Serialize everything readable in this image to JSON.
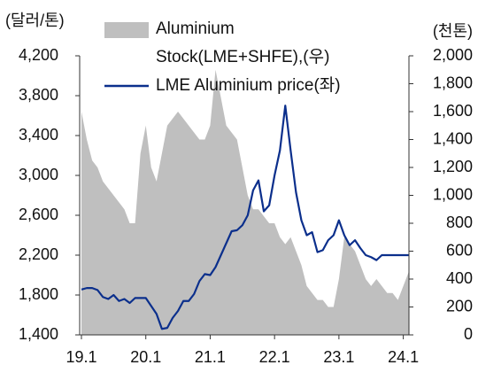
{
  "chart_data": {
    "type": "area_line",
    "y_label": "(달러/톤)",
    "y2_label": "(천톤)",
    "categories": [
      "19.1",
      null,
      null,
      null,
      null,
      null,
      null,
      null,
      null,
      null,
      null,
      null,
      "20.1",
      null,
      null,
      null,
      null,
      null,
      null,
      null,
      null,
      null,
      null,
      null,
      "21.1",
      null,
      null,
      null,
      null,
      null,
      null,
      null,
      null,
      null,
      null,
      null,
      "22.1",
      null,
      null,
      null,
      null,
      null,
      null,
      null,
      null,
      null,
      null,
      null,
      "23.1",
      null,
      null,
      null,
      null,
      null,
      null,
      null,
      null,
      null,
      null,
      null,
      "24.1",
      null
    ],
    "series": [
      {
        "name": "Aluminium Stock(LME+SHFE),(우)",
        "type": "area",
        "axis": "y2",
        "color": "#bfbfbf",
        "values": [
          1600,
          1400,
          1250,
          1200,
          1100,
          1050,
          1000,
          950,
          900,
          800,
          800,
          1300,
          1500,
          1200,
          1100,
          1300,
          1500,
          1550,
          1600,
          1550,
          1500,
          1450,
          1400,
          1400,
          1500,
          1900,
          1700,
          1500,
          1450,
          1400,
          1200,
          1000,
          900,
          900,
          850,
          800,
          800,
          700,
          650,
          700,
          600,
          500,
          350,
          300,
          250,
          250,
          200,
          200,
          400,
          700,
          650,
          600,
          500,
          400,
          350,
          400,
          350,
          300,
          300,
          250,
          350,
          450
        ]
      },
      {
        "name": "LME Aluminium price(좌)",
        "type": "line",
        "color": "#0b2f8c",
        "values": [
          1855,
          1870,
          1870,
          1850,
          1780,
          1760,
          1800,
          1740,
          1760,
          1720,
          1770,
          1770,
          1770,
          1690,
          1610,
          1460,
          1470,
          1570,
          1640,
          1740,
          1740,
          1810,
          1940,
          2010,
          2000,
          2080,
          2200,
          2320,
          2440,
          2450,
          2500,
          2600,
          2850,
          2950,
          2640,
          2700,
          3000,
          3250,
          3700,
          3250,
          2830,
          2550,
          2400,
          2430,
          2230,
          2250,
          2350,
          2400,
          2550,
          2400,
          2300,
          2350,
          2270,
          2200,
          2180,
          2150,
          2200,
          2200,
          2200,
          2200,
          2200,
          2200
        ]
      }
    ],
    "ylim": [
      1400,
      4200
    ],
    "yticks": [
      {
        "value": 1400,
        "label": "1,400"
      },
      {
        "value": 1800,
        "label": "1,800"
      },
      {
        "value": 2200,
        "label": "2,200"
      },
      {
        "value": 2600,
        "label": "2,600"
      },
      {
        "value": 3000,
        "label": "3,000"
      },
      {
        "value": 3400,
        "label": "3,400"
      },
      {
        "value": 3800,
        "label": "3,800"
      },
      {
        "value": 4200,
        "label": "4,200"
      }
    ],
    "y2lim": [
      0,
      2000
    ],
    "y2ticks": [
      0,
      200,
      400,
      600,
      800,
      {
        "value": 1000,
        "label": "1,000"
      },
      {
        "value": 1200,
        "label": "1,200"
      },
      {
        "value": 1400,
        "label": "1,400"
      },
      {
        "value": 1600,
        "label": "1,600"
      },
      {
        "value": 1800,
        "label": "1,800"
      },
      {
        "value": 2000,
        "label": "2,000"
      }
    ]
  }
}
